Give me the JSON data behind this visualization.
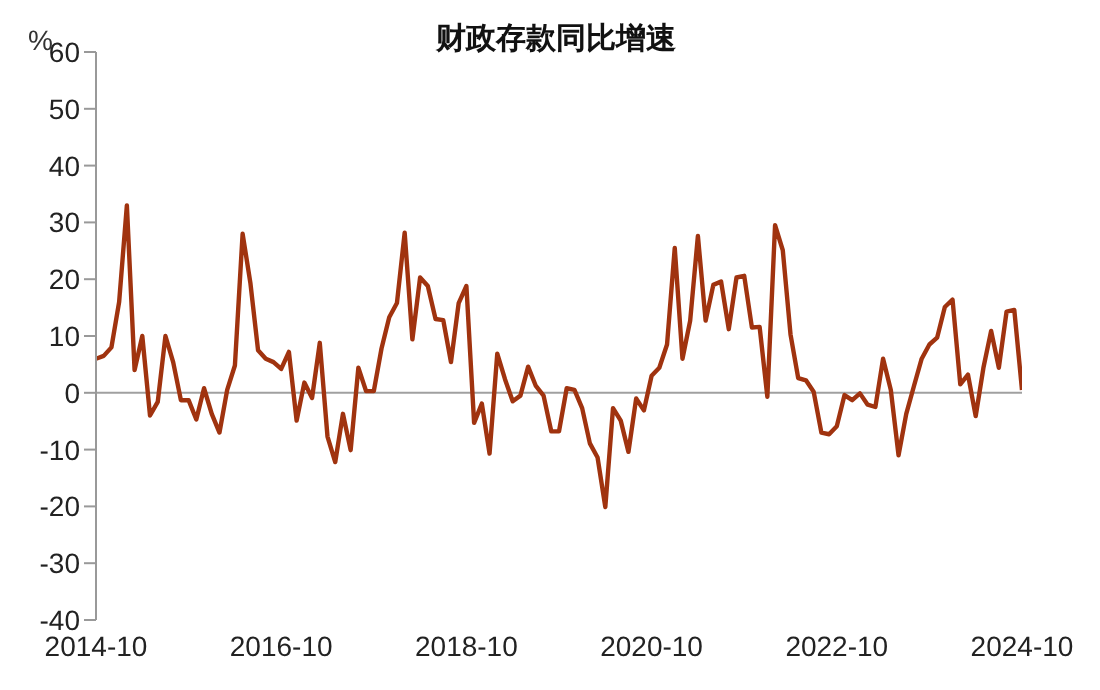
{
  "chart_data": {
    "type": "line",
    "title": "财政存款同比增速",
    "ylabel": "%",
    "x": [
      "2014-10",
      "2014-11",
      "2014-12",
      "2015-01",
      "2015-02",
      "2015-03",
      "2015-04",
      "2015-05",
      "2015-06",
      "2015-07",
      "2015-08",
      "2015-09",
      "2015-10",
      "2015-11",
      "2015-12",
      "2016-01",
      "2016-02",
      "2016-03",
      "2016-04",
      "2016-05",
      "2016-06",
      "2016-07",
      "2016-08",
      "2016-09",
      "2016-10",
      "2016-11",
      "2016-12",
      "2017-01",
      "2017-02",
      "2017-03",
      "2017-04",
      "2017-05",
      "2017-06",
      "2017-07",
      "2017-08",
      "2017-09",
      "2017-10",
      "2017-11",
      "2017-12",
      "2018-01",
      "2018-02",
      "2018-03",
      "2018-04",
      "2018-05",
      "2018-06",
      "2018-07",
      "2018-08",
      "2018-09",
      "2018-10",
      "2018-11",
      "2018-12",
      "2019-01",
      "2019-02",
      "2019-03",
      "2019-04",
      "2019-05",
      "2019-06",
      "2019-07",
      "2019-08",
      "2019-09",
      "2019-10",
      "2019-11",
      "2019-12",
      "2020-01",
      "2020-02",
      "2020-03",
      "2020-04",
      "2020-05",
      "2020-06",
      "2020-07",
      "2020-08",
      "2020-09",
      "2020-10",
      "2020-11",
      "2020-12",
      "2021-01",
      "2021-02",
      "2021-03",
      "2021-04",
      "2021-05",
      "2021-06",
      "2021-07",
      "2021-08",
      "2021-09",
      "2021-10",
      "2021-11",
      "2021-12",
      "2022-01",
      "2022-02",
      "2022-03",
      "2022-04",
      "2022-05",
      "2022-06",
      "2022-07",
      "2022-08",
      "2022-09",
      "2022-10",
      "2022-11",
      "2022-12",
      "2023-01",
      "2023-02",
      "2023-03",
      "2023-04",
      "2023-05",
      "2023-06",
      "2023-07",
      "2023-08",
      "2023-09",
      "2023-10",
      "2023-11",
      "2023-12",
      "2024-01",
      "2024-02",
      "2024-03",
      "2024-04",
      "2024-05",
      "2024-06",
      "2024-07",
      "2024-08",
      "2024-09",
      "2024-10"
    ],
    "series": [
      {
        "color": "#a0330f",
        "values": [
          6,
          6.5,
          8,
          16,
          33,
          4,
          10,
          -4,
          -1.6,
          10,
          5.4,
          -1.3,
          -1.3,
          -4.7,
          0.8,
          -3.7,
          -7,
          0.5,
          4.8,
          28,
          19.4,
          7.5,
          6,
          5.4,
          4.2,
          7.2,
          -4.9,
          1.8,
          -0.9,
          8.8,
          -7.7,
          -12.2,
          -3.7,
          -10.1,
          4.4,
          0.3,
          0.3,
          7.8,
          13.3,
          15.8,
          28.2,
          9.4,
          20.3,
          18.8,
          13,
          12.8,
          5.4,
          15.8,
          18.8,
          -5.3,
          -1.9,
          -10.7,
          6.9,
          2.4,
          -1.5,
          -0.5,
          4.6,
          1.2,
          -0.5,
          -6.8,
          -6.8,
          0.8,
          0.5,
          -2.7,
          -8.9,
          -11.4,
          -20.1,
          -2.7,
          -4.9,
          -10.4,
          -1,
          -3.1,
          3,
          4.4,
          8.5,
          25.5,
          6,
          12.7,
          27.6,
          12.7,
          19,
          19.6,
          11.2,
          20.3,
          20.6,
          11.5,
          11.6,
          -0.7,
          29.5,
          25.1,
          10.3,
          2.6,
          2.2,
          0.2,
          -7,
          -7.3,
          -5.9,
          -0.4,
          -1.3,
          -0.1,
          -2.1,
          -2.5,
          6,
          0.5,
          -11,
          -3.7,
          1.2,
          6,
          8.5,
          9.7,
          15.1,
          16.4,
          1.5,
          3.2,
          -4.1,
          4.4,
          10.9,
          4.4,
          14.3,
          14.6,
          0.5
        ]
      }
    ],
    "xlim": [
      "2014-10",
      "2024-10"
    ],
    "xticks": [
      "2014-10",
      "2016-10",
      "2018-10",
      "2020-10",
      "2022-10",
      "2024-10"
    ],
    "ylim": [
      -40,
      60
    ],
    "yticks": [
      -40,
      -30,
      -20,
      -10,
      0,
      10,
      20,
      30,
      40,
      50,
      60
    ],
    "ref_lines": [
      {
        "axis": "y",
        "value": 0,
        "color": "#a0a0a0"
      }
    ],
    "grid": false,
    "legend": false
  }
}
